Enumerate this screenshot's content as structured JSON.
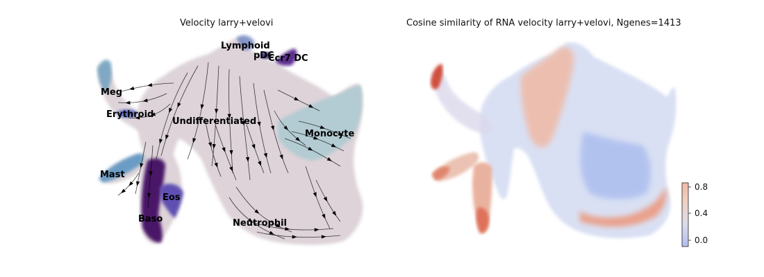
{
  "chart_data": [
    {
      "type": "scatter",
      "title": "Velocity larry+velovi",
      "background_color": "#ddd3d8",
      "stream_color": "#000000",
      "clusters": [
        {
          "name": "Lymphoid",
          "color": "#6b7fbf"
        },
        {
          "name": "pDC",
          "color": "#3b2a7a"
        },
        {
          "name": "Ccr7 DC",
          "color": "#5b2f8e"
        },
        {
          "name": "Meg",
          "color": "#7aa6c2"
        },
        {
          "name": "Erythroid",
          "color": "#5e6bc4"
        },
        {
          "name": "Undifferentiated",
          "color": "#ddd3d8"
        },
        {
          "name": "Monocyte",
          "color": "#b3cbd2"
        },
        {
          "name": "Mast",
          "color": "#6a9cc5"
        },
        {
          "name": "Eos",
          "color": "#5e4fb2"
        },
        {
          "name": "Baso",
          "color": "#4a1468"
        },
        {
          "name": "Neutrophil",
          "color": "#ddd3d8"
        }
      ]
    },
    {
      "type": "scatter",
      "title": "Cosine similarity of RNA velocity larry+velovi, Ngenes=1413",
      "colormap": "coolwarm",
      "colorbar": {
        "ticks": [
          "0.0",
          "0.4",
          "0.8"
        ],
        "range": [
          -0.1,
          0.85
        ],
        "colors": [
          "#b0bdf0",
          "#dcdcea",
          "#f0d0c4",
          "#f2b9a6"
        ]
      }
    }
  ]
}
